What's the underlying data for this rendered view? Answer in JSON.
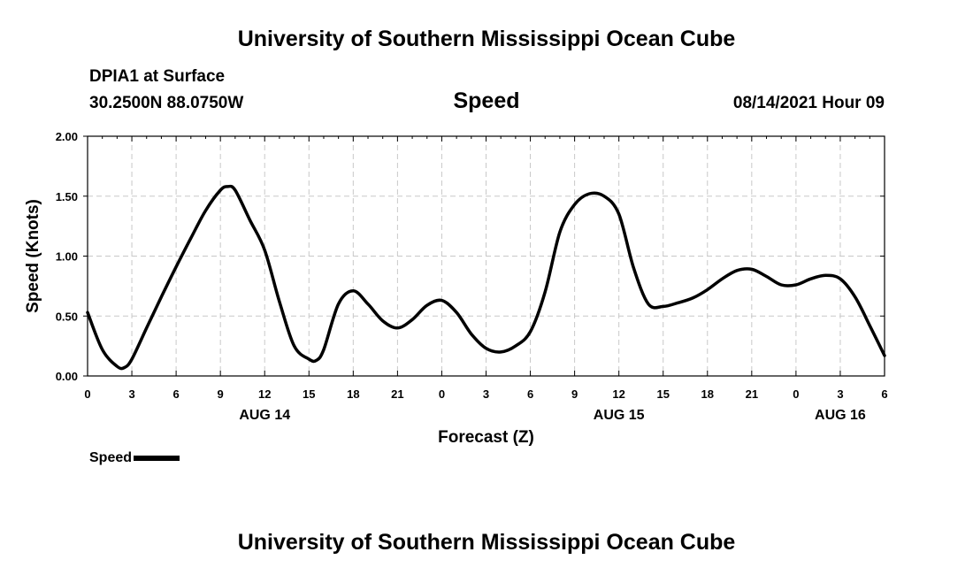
{
  "header": {
    "title": "University of Southern Mississippi Ocean Cube",
    "station": "DPIA1 at Surface",
    "coords": "30.2500N  88.0750W",
    "datetime": "08/14/2021 Hour 09",
    "footer_title": "University of Southern Mississippi Ocean Cube"
  },
  "chart_data": {
    "type": "line",
    "title": "Speed",
    "xlabel": "Forecast (Z)",
    "ylabel": "Speed (Knots)",
    "ylim": [
      0,
      2
    ],
    "xlim": [
      0,
      54
    ],
    "grid": true,
    "legend_position": "bottom-left",
    "y_ticks": [
      "0.00",
      "0.50",
      "1.00",
      "1.50",
      "2.00"
    ],
    "y_tick_values": [
      0,
      0.5,
      1,
      1.5,
      2
    ],
    "x_tick_hours": [
      0,
      3,
      6,
      9,
      12,
      15,
      18,
      21,
      24,
      27,
      30,
      33,
      36,
      39,
      42,
      45,
      48,
      51,
      54
    ],
    "x_tick_labels": [
      "0",
      "3",
      "6",
      "9",
      "12",
      "15",
      "18",
      "21",
      "0",
      "3",
      "6",
      "9",
      "12",
      "15",
      "18",
      "21",
      "0",
      "3",
      "6"
    ],
    "date_labels": [
      {
        "hour": 12,
        "label": "AUG 14"
      },
      {
        "hour": 36,
        "label": "AUG 15"
      },
      {
        "hour": 51,
        "label": "AUG 16"
      }
    ],
    "series": [
      {
        "name": "Speed",
        "color": "#000000",
        "x": [
          0,
          1,
          2,
          2.5,
          3,
          4,
          5,
          6,
          7,
          8,
          9,
          9.5,
          10,
          11,
          12,
          13,
          14,
          15,
          15.5,
          16,
          17,
          18,
          19,
          20,
          21,
          22,
          23,
          24,
          25,
          26,
          27,
          28,
          29,
          30,
          31,
          32,
          33,
          34,
          35,
          36,
          37,
          38,
          39,
          40,
          41,
          42,
          43,
          44,
          45,
          46,
          47,
          48,
          49,
          50,
          51,
          52,
          53,
          54
        ],
        "values": [
          0.53,
          0.22,
          0.08,
          0.07,
          0.14,
          0.4,
          0.66,
          0.91,
          1.15,
          1.38,
          1.55,
          1.58,
          1.55,
          1.3,
          1.05,
          0.62,
          0.25,
          0.14,
          0.13,
          0.22,
          0.6,
          0.71,
          0.6,
          0.46,
          0.4,
          0.47,
          0.59,
          0.63,
          0.53,
          0.35,
          0.23,
          0.2,
          0.25,
          0.37,
          0.7,
          1.2,
          1.43,
          1.52,
          1.5,
          1.35,
          0.9,
          0.6,
          0.58,
          0.61,
          0.65,
          0.72,
          0.81,
          0.88,
          0.89,
          0.83,
          0.76,
          0.76,
          0.81,
          0.84,
          0.81,
          0.66,
          0.42,
          0.17
        ]
      }
    ]
  },
  "legend": {
    "label": "Speed"
  }
}
